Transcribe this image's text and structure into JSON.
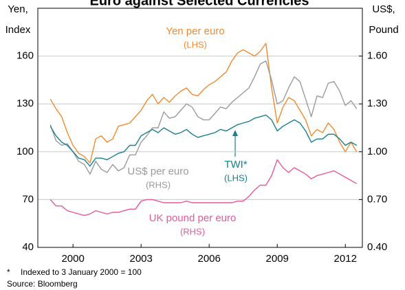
{
  "chart_data": {
    "type": "line",
    "title": "Euro against Selected Currencies",
    "y_label": [
      "Yen,",
      "Index"
    ],
    "y2_label": [
      "US$,",
      "Pound"
    ],
    "footnote": [
      "*",
      "Indexed to 3 January 2000 = 100"
    ],
    "source": "Source: Bloomberg",
    "x": [
      1999,
      1999.25,
      1999.5,
      1999.75,
      2000,
      2000.25,
      2000.5,
      2000.75,
      2001,
      2001.25,
      2001.5,
      2001.75,
      2002,
      2002.25,
      2002.5,
      2002.75,
      2003,
      2003.25,
      2003.5,
      2003.75,
      2004,
      2004.25,
      2004.5,
      2004.75,
      2005,
      2005.25,
      2005.5,
      2005.75,
      2006,
      2006.25,
      2006.5,
      2006.75,
      2007,
      2007.25,
      2007.5,
      2007.75,
      2008,
      2008.25,
      2008.5,
      2008.75,
      2009,
      2009.25,
      2009.5,
      2009.75,
      2010,
      2010.25,
      2010.5,
      2010.75,
      2011,
      2011.25,
      2011.5,
      2011.75,
      2012,
      2012.25,
      2012.5
    ],
    "series": [
      {
        "name": "Yen per euro",
        "annotation": "(LHS)",
        "color": "#f08a2c",
        "axis": "y",
        "values": [
          133,
          127,
          122,
          112,
          104,
          99,
          97,
          93,
          108,
          110,
          106,
          108,
          116,
          117,
          118,
          122,
          126,
          132,
          136,
          130,
          134,
          131,
          135,
          138,
          140,
          136,
          135,
          139,
          142,
          144,
          147,
          150,
          157,
          162,
          164,
          162,
          160,
          163,
          168,
          140,
          118,
          128,
          134,
          132,
          126,
          120,
          110,
          114,
          112,
          118,
          114,
          106,
          100,
          106,
          100
        ]
      },
      {
        "name": "US$ per euro",
        "annotation": "(RHS)",
        "color": "#9a9a9a",
        "axis": "y2",
        "values": [
          1.17,
          1.07,
          1.04,
          1.05,
          1.0,
          0.94,
          0.92,
          0.86,
          0.94,
          0.89,
          0.87,
          0.92,
          0.88,
          0.9,
          0.98,
          0.98,
          1.06,
          1.1,
          1.15,
          1.15,
          1.25,
          1.21,
          1.22,
          1.26,
          1.3,
          1.28,
          1.22,
          1.2,
          1.2,
          1.24,
          1.28,
          1.27,
          1.31,
          1.34,
          1.37,
          1.4,
          1.47,
          1.55,
          1.57,
          1.45,
          1.3,
          1.32,
          1.4,
          1.47,
          1.44,
          1.33,
          1.22,
          1.35,
          1.34,
          1.43,
          1.44,
          1.38,
          1.29,
          1.32,
          1.27
        ]
      },
      {
        "name": "TWI*",
        "annotation": "(LHS)",
        "color": "#16808f",
        "axis": "y",
        "values": [
          116,
          110,
          106,
          104,
          100,
          96,
          95,
          91,
          96,
          96,
          95,
          97,
          99,
          100,
          104,
          104,
          110,
          112,
          114,
          112,
          115,
          113,
          111,
          112,
          114,
          111,
          109,
          110,
          111,
          112,
          114,
          113,
          115,
          117,
          118,
          119,
          121,
          122,
          123,
          120,
          113,
          116,
          118,
          120,
          118,
          113,
          106,
          108,
          108,
          111,
          111,
          108,
          104,
          106,
          104
        ]
      },
      {
        "name": "UK pound per euro",
        "annotation": "(RHS)",
        "color": "#e8579b",
        "axis": "y2",
        "values": [
          0.7,
          0.66,
          0.66,
          0.63,
          0.62,
          0.61,
          0.6,
          0.61,
          0.63,
          0.62,
          0.61,
          0.62,
          0.62,
          0.63,
          0.64,
          0.64,
          0.69,
          0.7,
          0.7,
          0.69,
          0.68,
          0.68,
          0.68,
          0.68,
          0.69,
          0.68,
          0.68,
          0.68,
          0.68,
          0.68,
          0.68,
          0.68,
          0.68,
          0.69,
          0.69,
          0.72,
          0.76,
          0.79,
          0.79,
          0.85,
          0.95,
          0.9,
          0.87,
          0.9,
          0.88,
          0.86,
          0.83,
          0.85,
          0.86,
          0.87,
          0.88,
          0.86,
          0.84,
          0.82,
          0.8
        ]
      }
    ],
    "xlim": [
      1998.45,
      2012.75
    ],
    "xticks": [
      2000,
      2003,
      2006,
      2009,
      2012
    ],
    "ylim": [
      40,
      190
    ],
    "yticks": [
      40,
      70,
      100,
      130,
      160
    ],
    "y2lim": [
      0.4,
      1.9
    ],
    "y2ticks": [
      {
        "value": 0.4,
        "label": "0.40"
      },
      {
        "value": 0.7,
        "label": "0.70"
      },
      {
        "value": 1.0,
        "label": "1.00"
      },
      {
        "value": 1.3,
        "label": "1.30"
      },
      {
        "value": 1.6,
        "label": "1.60"
      }
    ],
    "grid": true
  }
}
